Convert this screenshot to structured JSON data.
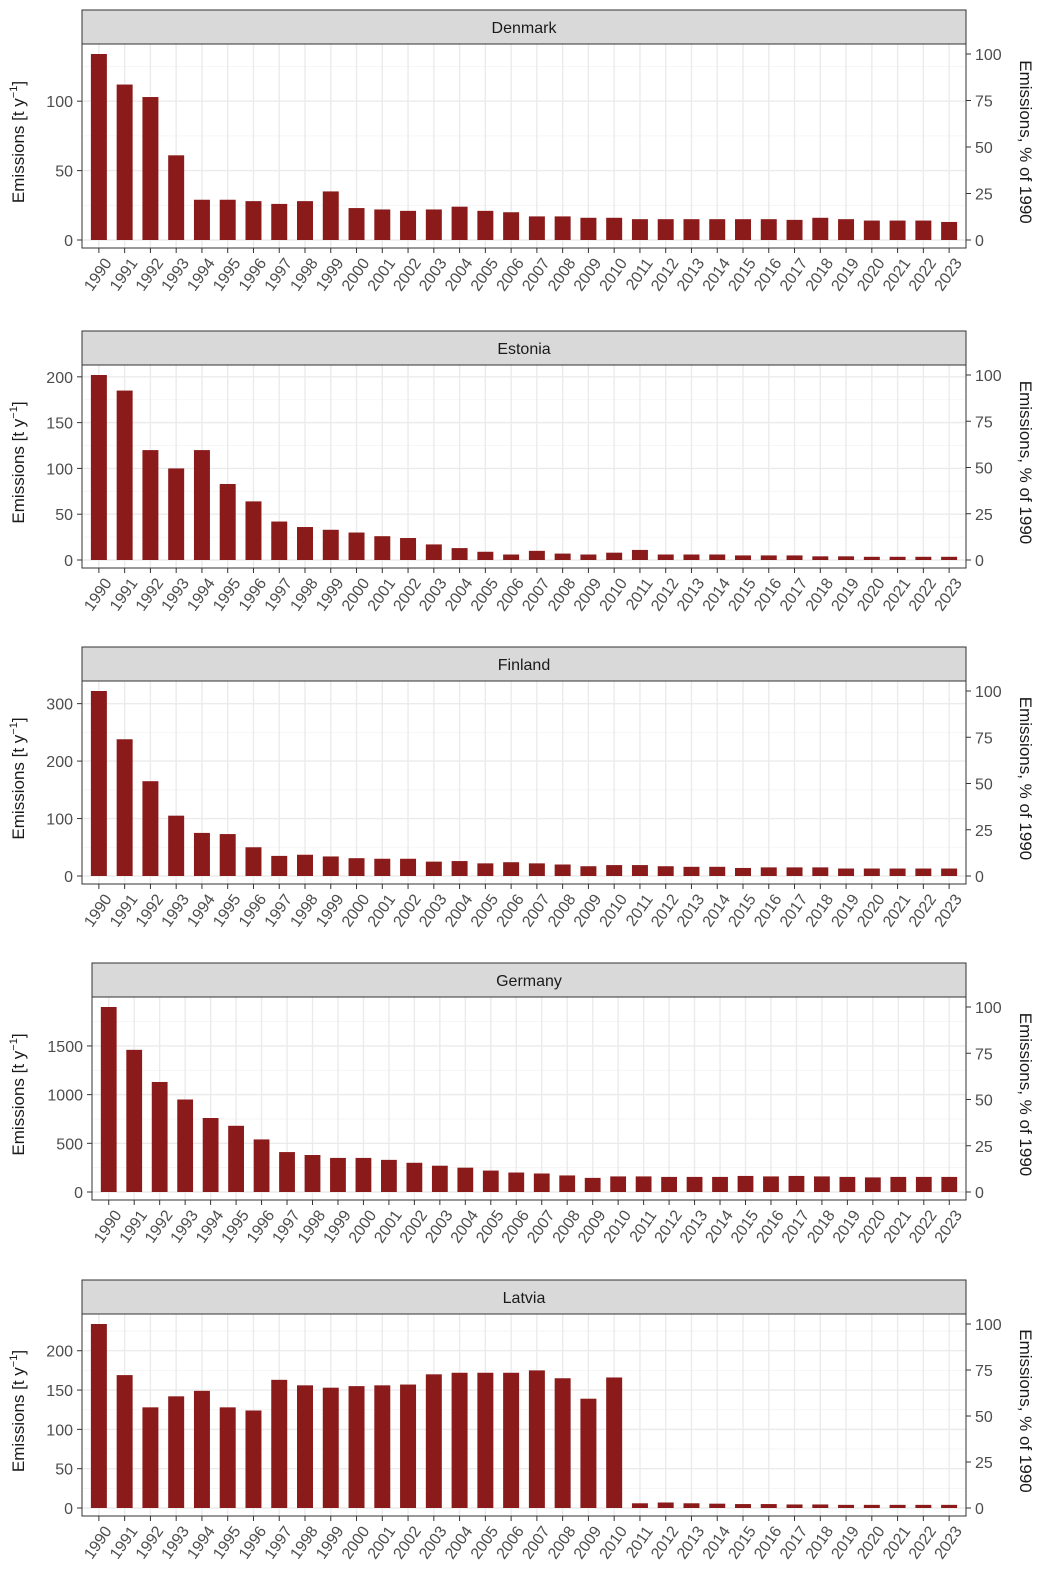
{
  "figure": {
    "colors": {
      "bar": "#8b1a1a",
      "strip_fill": "#d9d9d9",
      "strip_border": "#333333",
      "grid": "#ebebeb",
      "text": "#1a1a1a"
    },
    "ylabel_main": "Emissions [t y",
    "ylabel_sup": "−1",
    "ylabel_close": "]",
    "y2label": "Emissions, % of 1990"
  },
  "chart_data": [
    {
      "type": "bar",
      "title": "Denmark",
      "categories": [
        "1990",
        "1991",
        "1992",
        "1993",
        "1994",
        "1995",
        "1996",
        "1997",
        "1998",
        "1999",
        "2000",
        "2001",
        "2002",
        "2003",
        "2004",
        "2005",
        "2006",
        "2007",
        "2008",
        "2009",
        "2010",
        "2011",
        "2012",
        "2013",
        "2014",
        "2015",
        "2016",
        "2017",
        "2018",
        "2019",
        "2020",
        "2021",
        "2022",
        "2023"
      ],
      "values": [
        134,
        112,
        103,
        61,
        29,
        29,
        28,
        26,
        28,
        35,
        23,
        22,
        21,
        22,
        24,
        21,
        20,
        17,
        17,
        16,
        16,
        15,
        15,
        15,
        15,
        15,
        15,
        14.5,
        16,
        15,
        14,
        14,
        14,
        13
      ],
      "yticks": [
        0,
        50,
        100
      ],
      "ylim": [
        0,
        134
      ],
      "y2ticks": [
        0,
        25,
        50,
        75,
        100
      ],
      "y2lim": [
        0,
        100
      ]
    },
    {
      "type": "bar",
      "title": "Estonia",
      "categories": [
        "1990",
        "1991",
        "1992",
        "1993",
        "1994",
        "1995",
        "1996",
        "1997",
        "1998",
        "1999",
        "2000",
        "2001",
        "2002",
        "2003",
        "2004",
        "2005",
        "2006",
        "2007",
        "2008",
        "2009",
        "2010",
        "2011",
        "2012",
        "2013",
        "2014",
        "2015",
        "2016",
        "2017",
        "2018",
        "2019",
        "2020",
        "2021",
        "2022",
        "2023"
      ],
      "values": [
        202,
        185,
        120,
        100,
        120,
        83,
        64,
        42,
        36,
        33,
        30,
        26,
        24,
        17,
        13,
        9,
        6,
        10,
        7,
        6,
        8,
        11,
        6,
        6,
        6,
        5,
        5,
        5,
        4,
        4,
        3.5,
        3.5,
        3.5,
        3.5
      ],
      "yticks": [
        0,
        50,
        100,
        150,
        200
      ],
      "ylim": [
        0,
        202
      ],
      "y2ticks": [
        0,
        25,
        50,
        75,
        100
      ],
      "y2lim": [
        0,
        100
      ]
    },
    {
      "type": "bar",
      "title": "Finland",
      "categories": [
        "1990",
        "1991",
        "1992",
        "1993",
        "1994",
        "1995",
        "1996",
        "1997",
        "1998",
        "1999",
        "2000",
        "2001",
        "2002",
        "2003",
        "2004",
        "2005",
        "2006",
        "2007",
        "2008",
        "2009",
        "2010",
        "2011",
        "2012",
        "2013",
        "2014",
        "2015",
        "2016",
        "2017",
        "2018",
        "2019",
        "2020",
        "2021",
        "2022",
        "2023"
      ],
      "values": [
        322,
        238,
        165,
        105,
        75,
        73,
        50,
        35,
        37,
        34,
        31,
        30,
        30,
        25,
        26,
        22,
        24,
        22,
        20,
        17,
        19,
        19,
        17,
        16,
        16,
        14,
        15,
        15,
        15,
        13,
        13,
        13,
        13,
        13
      ],
      "yticks": [
        0,
        100,
        200,
        300
      ],
      "ylim": [
        0,
        322
      ],
      "y2ticks": [
        0,
        25,
        50,
        75,
        100
      ],
      "y2lim": [
        0,
        100
      ]
    },
    {
      "type": "bar",
      "title": "Germany",
      "categories": [
        "1990",
        "1991",
        "1992",
        "1993",
        "1994",
        "1995",
        "1996",
        "1997",
        "1998",
        "1999",
        "2000",
        "2001",
        "2002",
        "2003",
        "2004",
        "2005",
        "2006",
        "2007",
        "2008",
        "2009",
        "2010",
        "2011",
        "2012",
        "2013",
        "2014",
        "2015",
        "2016",
        "2017",
        "2018",
        "2019",
        "2020",
        "2021",
        "2022",
        "2023"
      ],
      "values": [
        1900,
        1460,
        1130,
        950,
        760,
        680,
        540,
        410,
        380,
        350,
        350,
        330,
        300,
        270,
        250,
        220,
        200,
        190,
        170,
        145,
        160,
        160,
        155,
        155,
        155,
        165,
        160,
        165,
        160,
        155,
        150,
        155,
        155,
        155
      ],
      "yticks": [
        0,
        500,
        1000,
        1500
      ],
      "ylim": [
        0,
        1900
      ],
      "y2ticks": [
        0,
        25,
        50,
        75,
        100
      ],
      "y2lim": [
        0,
        100
      ]
    },
    {
      "type": "bar",
      "title": "Latvia",
      "categories": [
        "1990",
        "1991",
        "1992",
        "1993",
        "1994",
        "1995",
        "1996",
        "1997",
        "1998",
        "1999",
        "2000",
        "2001",
        "2002",
        "2003",
        "2004",
        "2005",
        "2006",
        "2007",
        "2008",
        "2009",
        "2010",
        "2011",
        "2012",
        "2013",
        "2014",
        "2015",
        "2016",
        "2017",
        "2018",
        "2019",
        "2020",
        "2021",
        "2022",
        "2023"
      ],
      "values": [
        234,
        169,
        128,
        142,
        149,
        128,
        124,
        163,
        156,
        153,
        155,
        156,
        157,
        170,
        172,
        172,
        172,
        175,
        165,
        139,
        166,
        6,
        7,
        6,
        5.5,
        5,
        5,
        4.5,
        4.5,
        4,
        4,
        4,
        4,
        4
      ],
      "yticks": [
        0,
        50,
        100,
        150,
        200
      ],
      "ylim": [
        0,
        234
      ],
      "y2ticks": [
        0,
        25,
        50,
        75,
        100
      ],
      "y2lim": [
        0,
        100
      ]
    }
  ]
}
